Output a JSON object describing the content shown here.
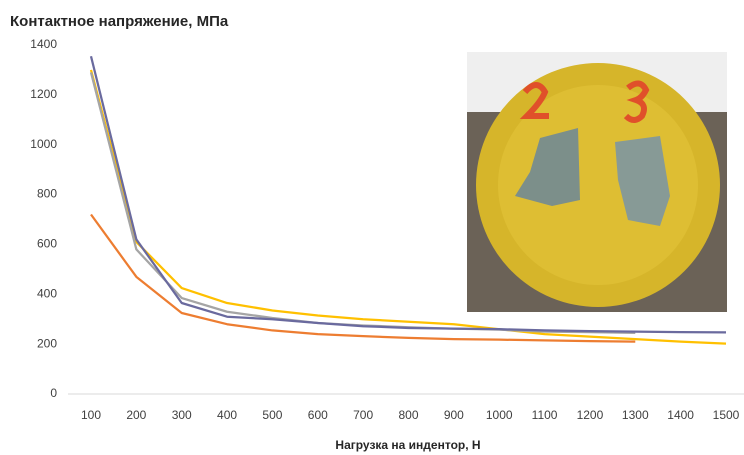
{
  "chart_data": {
    "type": "line",
    "title": "Контактное напряжение, МПа",
    "x_label": "Нагрузка на индентор, Н",
    "categories": [
      "100",
      "200",
      "300",
      "400",
      "500",
      "600",
      "700",
      "800",
      "900",
      "1000",
      "1100",
      "1200",
      "1300",
      "1400",
      "1500"
    ],
    "ylim": [
      0,
      1400
    ],
    "yticks": [
      0,
      200,
      400,
      600,
      800,
      1000,
      1200,
      1400
    ],
    "grid": false,
    "series": [
      {
        "color": "#ffc000",
        "values": [
          1300,
          610,
          425,
          365,
          335,
          315,
          300,
          290,
          280,
          260,
          240,
          230,
          220,
          210,
          202
        ]
      },
      {
        "color": "#a5a5a5",
        "values": [
          1290,
          580,
          385,
          330,
          305,
          285,
          275,
          268,
          262,
          258,
          250,
          248,
          245,
          null,
          null
        ]
      },
      {
        "color": "#ed7d31",
        "values": [
          720,
          470,
          325,
          280,
          255,
          240,
          232,
          225,
          220,
          218,
          215,
          212,
          210,
          null,
          null
        ]
      },
      {
        "color": "#6a6a9e",
        "values": [
          1355,
          620,
          365,
          310,
          300,
          285,
          272,
          265,
          262,
          260,
          255,
          252,
          250,
          248,
          247
        ]
      }
    ]
  }
}
